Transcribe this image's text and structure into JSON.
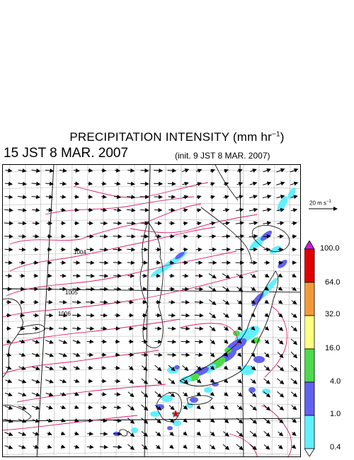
{
  "header": {
    "title_text": "PRECIPITATION INTENSITY (mm hr",
    "title_exp": "−1",
    "title_close": ")",
    "valid_time": "15 JST 8 MAR. 2007",
    "init_time": "(init. 9 JST 8 MAR. 2007)"
  },
  "reference_vector": {
    "label_prefix": "20 m s",
    "label_exp": "−1"
  },
  "isobar_labels": [
    "1004",
    "1005",
    "1006"
  ],
  "colorbar": {
    "levels": [
      "100.0",
      "64.0",
      "32.0",
      "16.0",
      "4.0",
      "1.0",
      "0.4"
    ],
    "colors": [
      "#d21cdc",
      "#e00000",
      "#f29a3a",
      "#ffff80",
      "#4dda4d",
      "#6262f0",
      "#60f0ff"
    ]
  },
  "map_style": {
    "coast_color": "#000000",
    "grid_color": "#b4b4b4",
    "isobar_color": "#dc1e6a",
    "storm_marker_color": "#e00000"
  }
}
